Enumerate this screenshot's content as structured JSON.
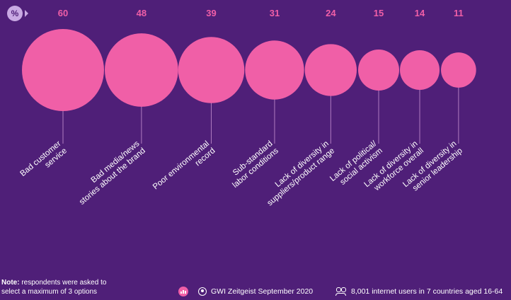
{
  "unit_label": "%",
  "chart_data": {
    "type": "bubble",
    "categories": [
      [
        "Bad customer",
        "service"
      ],
      [
        "Bad media/news",
        "stories about the brand"
      ],
      [
        "Poor environmental",
        "record"
      ],
      [
        "Sub-standard",
        "labor conditions"
      ],
      [
        "Lack of diversity in",
        "suppliers/product range"
      ],
      [
        "Lack of political/",
        "social activism"
      ],
      [
        "Lack of diversity in",
        "workforce overall"
      ],
      [
        "Lack of diversity in",
        "senior leadership"
      ]
    ],
    "values": [
      60,
      48,
      39,
      31,
      24,
      15,
      14,
      11
    ]
  },
  "colors": {
    "background": "#4f1f78",
    "bubble": "#f05fa7",
    "value_text": "#f05fa7",
    "stem": "#b07cc0"
  },
  "note": {
    "label": "Note:",
    "line1": " respondents were asked to",
    "line2": "select a maximum of 3 options"
  },
  "footer": {
    "chart_icon": "bar-chart-icon",
    "source_icon": "gwi-logo-icon",
    "source": "GWI Zeitgeist September 2020",
    "sample_icon": "users-icon",
    "sample": "8,001 internet users in 7 countries aged 16-64"
  }
}
